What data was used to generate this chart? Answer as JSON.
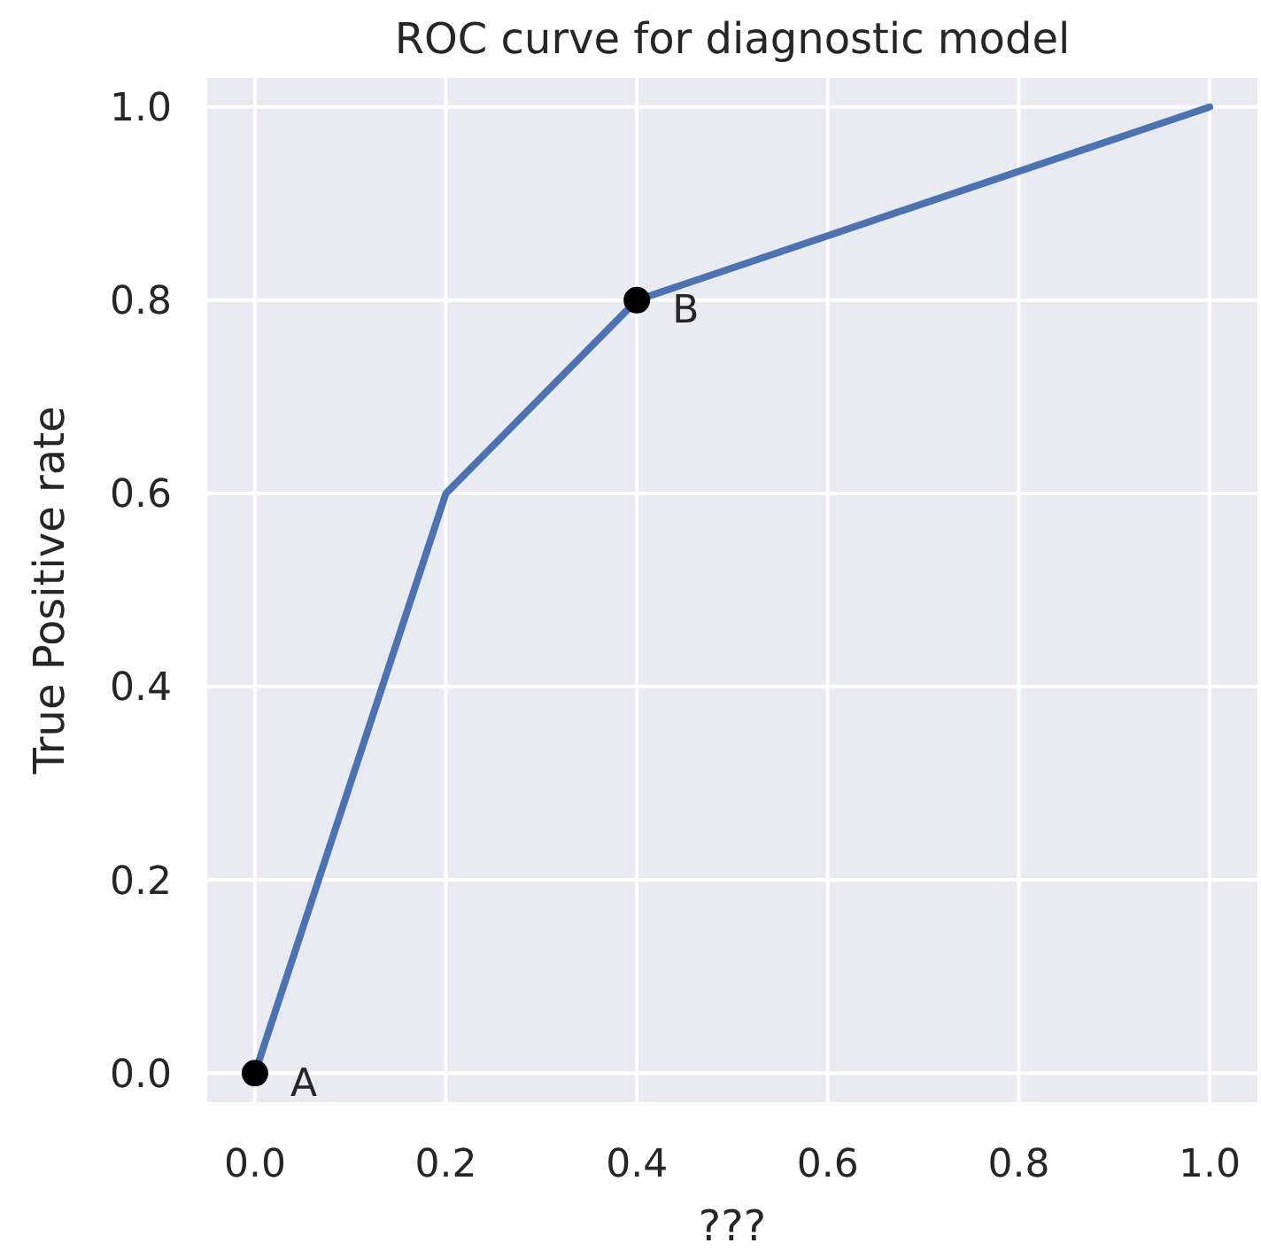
{
  "chart_data": {
    "type": "line",
    "title": "ROC curve for diagnostic model",
    "xlabel": "???",
    "ylabel": "True Positive rate",
    "xlim": [
      -0.05,
      1.05
    ],
    "ylim": [
      -0.03,
      1.03
    ],
    "xticks": [
      {
        "value": 0,
        "label": "0.0"
      },
      {
        "value": 0.2,
        "label": "0.2"
      },
      {
        "value": 0.4,
        "label": "0.4"
      },
      {
        "value": 0.6,
        "label": "0.6"
      },
      {
        "value": 0.8,
        "label": "0.8"
      },
      {
        "value": 1,
        "label": "1.0"
      }
    ],
    "yticks": [
      {
        "value": 0,
        "label": "0.0"
      },
      {
        "value": 0.2,
        "label": "0.2"
      },
      {
        "value": 0.4,
        "label": "0.4"
      },
      {
        "value": 0.6,
        "label": "0.6"
      },
      {
        "value": 0.8,
        "label": "0.8"
      },
      {
        "value": 1,
        "label": "1.0"
      }
    ],
    "grid": true,
    "series": [
      {
        "color": "#4c72b0",
        "x": [
          0,
          0.2,
          0.4,
          1
        ],
        "values": [
          0,
          0.6,
          0.8,
          1
        ],
        "marker": "none",
        "line_style": "solid"
      },
      {
        "type": "scatter",
        "color": "#000000",
        "x": [
          0,
          0.4
        ],
        "values": [
          0,
          0.8
        ],
        "marker": "circle"
      }
    ],
    "annotations": [
      {
        "text": "A",
        "x": 0,
        "y": 0
      },
      {
        "text": "B",
        "x": 0.4,
        "y": 0.8
      }
    ]
  }
}
